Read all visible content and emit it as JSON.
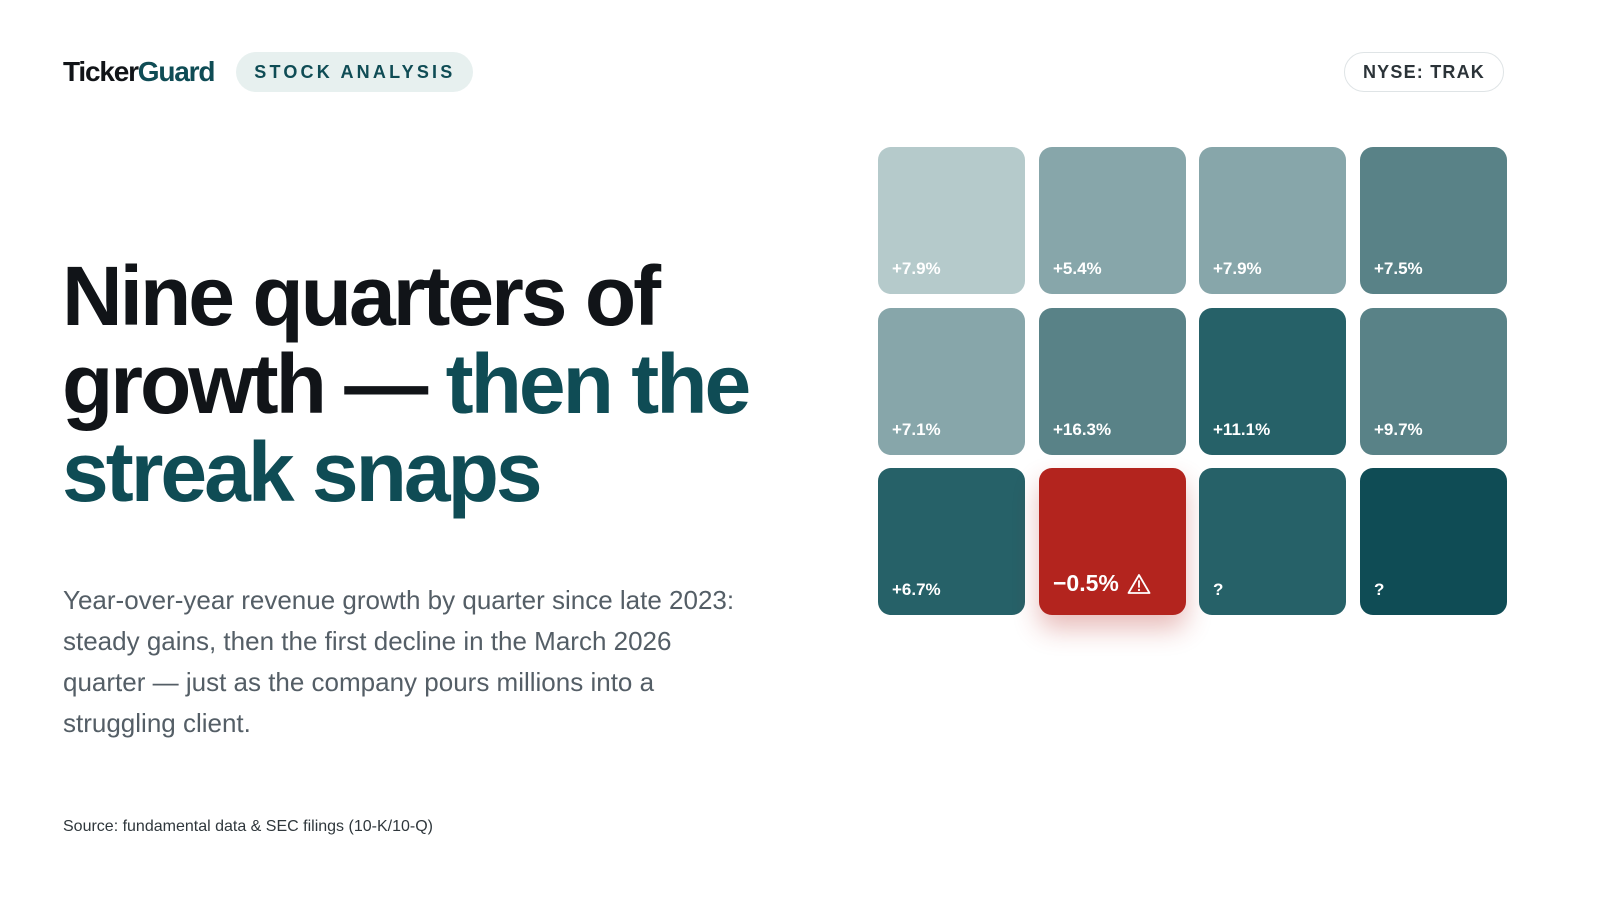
{
  "brand": {
    "logo_part1": "Ticker",
    "logo_part2": "Guard",
    "tag": "STOCK ANALYSIS"
  },
  "ticker": "NYSE: TRAK",
  "headline": {
    "line1": "Nine quarters of",
    "line2_dark": "growth — ",
    "line2_teal": "then the",
    "line3_teal": "streak snaps"
  },
  "subtext": "Year-over-year revenue growth by quarter since late 2023: steady gains, then the first decline in the March 2026 quarter — just as the company pours millions into a struggling client.",
  "source": "Source: fundamental data & SEC filings (10-K/10-Q)",
  "chart_data": {
    "type": "heatmap",
    "layout": "3 rows × 4 columns",
    "cells": [
      {
        "label": "+7.9%",
        "value": 7.9,
        "color": "#b5cacb"
      },
      {
        "label": "+5.4%",
        "value": 5.4,
        "color": "#87a6aa"
      },
      {
        "label": "+7.9%",
        "value": 7.9,
        "color": "#87a6aa"
      },
      {
        "label": "+7.5%",
        "value": 7.5,
        "color": "#598287"
      },
      {
        "label": "+7.1%",
        "value": 7.1,
        "color": "#87a6aa"
      },
      {
        "label": "+16.3%",
        "value": 16.3,
        "color": "#598287"
      },
      {
        "label": "+11.1%",
        "value": 11.1,
        "color": "#266168"
      },
      {
        "label": "+9.7%",
        "value": 9.7,
        "color": "#598287"
      },
      {
        "label": "+6.7%",
        "value": 6.7,
        "color": "#266168"
      },
      {
        "label": "−0.5%",
        "value": -0.5,
        "color": "#b3241e",
        "highlight": true,
        "icon": "warning-icon"
      },
      {
        "label": "?",
        "value": null,
        "color": "#266168"
      },
      {
        "label": "?",
        "value": null,
        "color": "#0f4c55"
      }
    ]
  }
}
